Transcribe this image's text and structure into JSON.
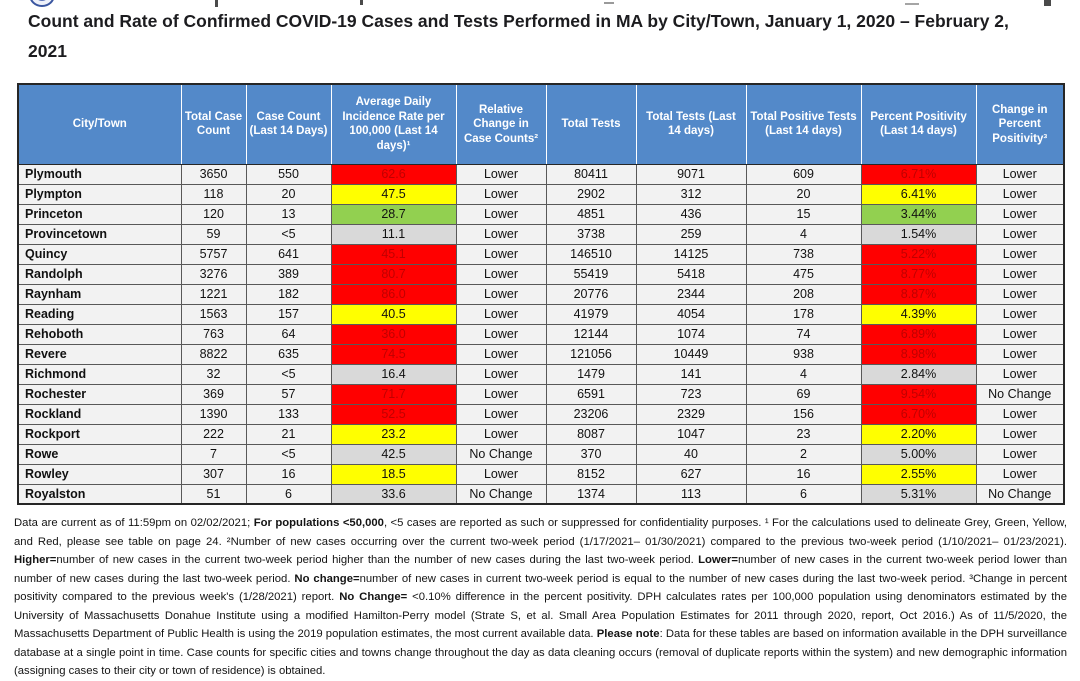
{
  "page": {
    "title": "Count and Rate of Confirmed COVID-19 Cases and Tests Performed in MA by City/Town, January 1, 2020 – February 2, 2021"
  },
  "colors": {
    "header_blue": "#5389C9",
    "cell_red": "#FF0000",
    "cell_red_text": "#C00000",
    "cell_yellow": "#FFFF00",
    "cell_green": "#92D050",
    "cell_grey": "#D9D9D9",
    "row_background": "#F2F2F2"
  },
  "table": {
    "columns": [
      "City/Town",
      "Total Case Count",
      "Case Count (Last 14 Days)",
      "Average Daily Incidence Rate per 100,000 (Last 14 days)¹",
      "Relative Change in Case Counts²",
      "Total Tests",
      "Total Tests (Last 14 days)",
      "Total Positive Tests (Last 14 days)",
      "Percent Positivity (Last 14 days)",
      "Change in Percent Positivity³"
    ],
    "rows": [
      {
        "town": "Plymouth",
        "total_cases": "3650",
        "cases_14d": "550",
        "incidence": "62.6",
        "incidence_color": "red",
        "case_change": "Lower",
        "total_tests": "80411",
        "tests_14d": "9071",
        "positive_14d": "609",
        "positivity": "6.71%",
        "positivity_color": "red",
        "positivity_change": "Lower"
      },
      {
        "town": "Plympton",
        "total_cases": "118",
        "cases_14d": "20",
        "incidence": "47.5",
        "incidence_color": "yellow",
        "case_change": "Lower",
        "total_tests": "2902",
        "tests_14d": "312",
        "positive_14d": "20",
        "positivity": "6.41%",
        "positivity_color": "yellow",
        "positivity_change": "Lower"
      },
      {
        "town": "Princeton",
        "total_cases": "120",
        "cases_14d": "13",
        "incidence": "28.7",
        "incidence_color": "green",
        "case_change": "Lower",
        "total_tests": "4851",
        "tests_14d": "436",
        "positive_14d": "15",
        "positivity": "3.44%",
        "positivity_color": "green",
        "positivity_change": "Lower"
      },
      {
        "town": "Provincetown",
        "total_cases": "59",
        "cases_14d": "<5",
        "incidence": "11.1",
        "incidence_color": "grey",
        "case_change": "Lower",
        "total_tests": "3738",
        "tests_14d": "259",
        "positive_14d": "4",
        "positivity": "1.54%",
        "positivity_color": "grey",
        "positivity_change": "Lower"
      },
      {
        "town": "Quincy",
        "total_cases": "5757",
        "cases_14d": "641",
        "incidence": "45.1",
        "incidence_color": "red",
        "case_change": "Lower",
        "total_tests": "146510",
        "tests_14d": "14125",
        "positive_14d": "738",
        "positivity": "5.22%",
        "positivity_color": "red",
        "positivity_change": "Lower"
      },
      {
        "town": "Randolph",
        "total_cases": "3276",
        "cases_14d": "389",
        "incidence": "80.7",
        "incidence_color": "red",
        "case_change": "Lower",
        "total_tests": "55419",
        "tests_14d": "5418",
        "positive_14d": "475",
        "positivity": "8.77%",
        "positivity_color": "red",
        "positivity_change": "Lower"
      },
      {
        "town": "Raynham",
        "total_cases": "1221",
        "cases_14d": "182",
        "incidence": "86.0",
        "incidence_color": "red",
        "case_change": "Lower",
        "total_tests": "20776",
        "tests_14d": "2344",
        "positive_14d": "208",
        "positivity": "8.87%",
        "positivity_color": "red",
        "positivity_change": "Lower"
      },
      {
        "town": "Reading",
        "total_cases": "1563",
        "cases_14d": "157",
        "incidence": "40.5",
        "incidence_color": "yellow",
        "case_change": "Lower",
        "total_tests": "41979",
        "tests_14d": "4054",
        "positive_14d": "178",
        "positivity": "4.39%",
        "positivity_color": "yellow",
        "positivity_change": "Lower"
      },
      {
        "town": "Rehoboth",
        "total_cases": "763",
        "cases_14d": "64",
        "incidence": "36.0",
        "incidence_color": "red",
        "case_change": "Lower",
        "total_tests": "12144",
        "tests_14d": "1074",
        "positive_14d": "74",
        "positivity": "6.89%",
        "positivity_color": "red",
        "positivity_change": "Lower"
      },
      {
        "town": "Revere",
        "total_cases": "8822",
        "cases_14d": "635",
        "incidence": "74.5",
        "incidence_color": "red",
        "case_change": "Lower",
        "total_tests": "121056",
        "tests_14d": "10449",
        "positive_14d": "938",
        "positivity": "8.98%",
        "positivity_color": "red",
        "positivity_change": "Lower"
      },
      {
        "town": "Richmond",
        "total_cases": "32",
        "cases_14d": "<5",
        "incidence": "16.4",
        "incidence_color": "grey",
        "case_change": "Lower",
        "total_tests": "1479",
        "tests_14d": "141",
        "positive_14d": "4",
        "positivity": "2.84%",
        "positivity_color": "grey",
        "positivity_change": "Lower"
      },
      {
        "town": "Rochester",
        "total_cases": "369",
        "cases_14d": "57",
        "incidence": "71.7",
        "incidence_color": "red",
        "case_change": "Lower",
        "total_tests": "6591",
        "tests_14d": "723",
        "positive_14d": "69",
        "positivity": "9.54%",
        "positivity_color": "red",
        "positivity_change": "No Change"
      },
      {
        "town": "Rockland",
        "total_cases": "1390",
        "cases_14d": "133",
        "incidence": "52.5",
        "incidence_color": "red",
        "case_change": "Lower",
        "total_tests": "23206",
        "tests_14d": "2329",
        "positive_14d": "156",
        "positivity": "6.70%",
        "positivity_color": "red",
        "positivity_change": "Lower"
      },
      {
        "town": "Rockport",
        "total_cases": "222",
        "cases_14d": "21",
        "incidence": "23.2",
        "incidence_color": "yellow",
        "case_change": "Lower",
        "total_tests": "8087",
        "tests_14d": "1047",
        "positive_14d": "23",
        "positivity": "2.20%",
        "positivity_color": "yellow",
        "positivity_change": "Lower"
      },
      {
        "town": "Rowe",
        "total_cases": "7",
        "cases_14d": "<5",
        "incidence": "42.5",
        "incidence_color": "grey",
        "case_change": "No Change",
        "total_tests": "370",
        "tests_14d": "40",
        "positive_14d": "2",
        "positivity": "5.00%",
        "positivity_color": "grey",
        "positivity_change": "Lower"
      },
      {
        "town": "Rowley",
        "total_cases": "307",
        "cases_14d": "16",
        "incidence": "18.5",
        "incidence_color": "yellow",
        "case_change": "Lower",
        "total_tests": "8152",
        "tests_14d": "627",
        "positive_14d": "16",
        "positivity": "2.55%",
        "positivity_color": "yellow",
        "positivity_change": "Lower"
      },
      {
        "town": "Royalston",
        "total_cases": "51",
        "cases_14d": "6",
        "incidence": "33.6",
        "incidence_color": "grey",
        "case_change": "No Change",
        "total_tests": "1374",
        "tests_14d": "113",
        "positive_14d": "6",
        "positivity": "5.31%",
        "positivity_color": "grey",
        "positivity_change": "No Change"
      }
    ]
  },
  "footnotes": {
    "segments": [
      {
        "t": "Data are current as of 11:59pm on 02/02/2021; ",
        "b": false
      },
      {
        "t": "For populations <50,000",
        "b": true
      },
      {
        "t": ", <5 cases are reported as such or suppressed for confidentiality purposes.  ¹ For the calculations used to delineate Grey, Green, Yellow, and Red, please see table on page 24.  ²Number of new cases occurring over the current two-week period (1/17/2021– 01/30/2021) compared to the previous two-week period (1/10/2021– 01/23/2021).  ",
        "b": false
      },
      {
        "t": "Higher=",
        "b": true
      },
      {
        "t": "number of new cases in the current two-week period higher than the number of new cases during the last two-week period.  ",
        "b": false
      },
      {
        "t": "Lower=",
        "b": true
      },
      {
        "t": "number of new cases in the current two-week period lower than number of new cases during the last two-week period.  ",
        "b": false
      },
      {
        "t": "No change=",
        "b": true
      },
      {
        "t": "number of new cases in current two-week period is equal to the number of new cases during the last two-week period.  ³Change in percent positivity compared to the previous week's (1/28/2021) report.  ",
        "b": false
      },
      {
        "t": "No Change=",
        "b": true
      },
      {
        "t": " <0.10% difference in the percent positivity.  DPH calculates rates per 100,000 population using denominators estimated by the University of Massachusetts Donahue Institute using a modified Hamilton-Perry model (Strate S, et al. Small Area Population Estimates for 2011 through 2020, report, Oct 2016.)  As of 11/5/2020, the Massachusetts Department of Public Health is using the 2019 population estimates, the most current available data.  ",
        "b": false
      },
      {
        "t": "Please note",
        "b": true
      },
      {
        "t": ": Data for these tables are based on information available in the DPH surveillance database at a single point in time. Case counts for specific cities and towns change throughout the day as data cleaning occurs (removal of duplicate reports within the system) and new demographic information (assigning cases to their city or town of residence) is obtained.",
        "b": false
      }
    ]
  }
}
